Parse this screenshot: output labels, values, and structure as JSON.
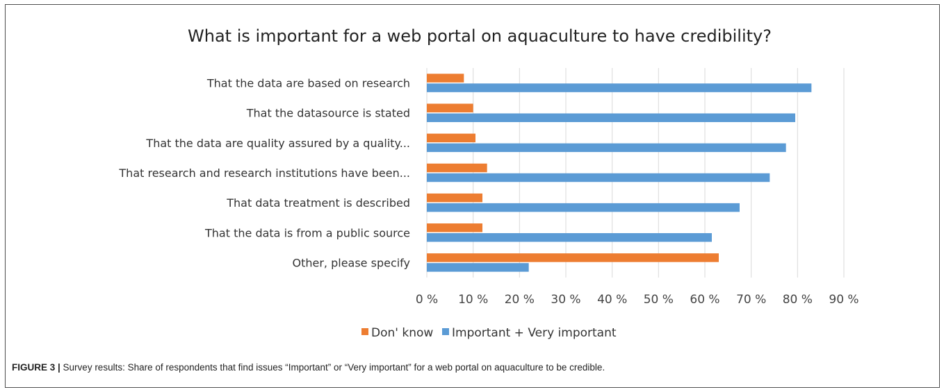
{
  "chart_data": {
    "type": "bar",
    "orientation": "horizontal",
    "title": "What is important for a web portal on aquaculture to have credibility?",
    "categories": [
      "That the data are based on research",
      "That the datasource is stated",
      "That the data are quality assured by a quality...",
      "That research and research institutions have been...",
      "That data treatment is described",
      "That the data is from a public source",
      "Other, please specify"
    ],
    "series": [
      {
        "name": "Don' know",
        "color": "#ed7d31",
        "values": [
          8,
          10,
          10.5,
          13,
          12,
          12,
          63
        ]
      },
      {
        "name": "Important + Very important",
        "color": "#5b9bd5",
        "values": [
          83,
          79.5,
          77.5,
          74,
          67.5,
          61.5,
          22
        ]
      }
    ],
    "xlim": [
      0,
      90
    ],
    "ticks": [
      "0 %",
      "10 %",
      "20 %",
      "30 %",
      "40 %",
      "50 %",
      "60 %",
      "70 %",
      "80 %",
      "90 %"
    ],
    "grid": true,
    "legend": "bottom"
  },
  "caption": {
    "lead": "FIGURE 3 |",
    "text": " Survey results: Share of respondents that find issues “Important” or “Very important” for a web portal on aquaculture to be credible."
  }
}
